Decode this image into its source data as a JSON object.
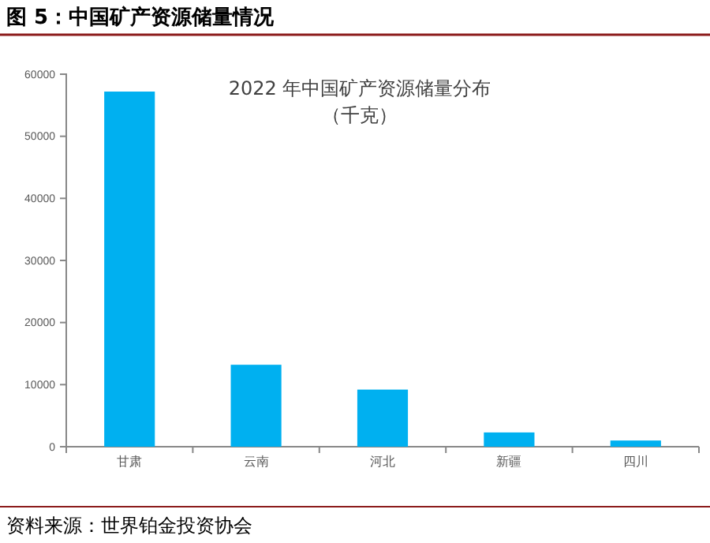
{
  "chart_data": {
    "type": "bar",
    "title": "图 5：中国矿产资源储量情况",
    "subtitle": "2022 年中国矿产资源储量分布（千克）",
    "categories": [
      "甘肃",
      "云南",
      "河北",
      "新疆",
      "四川"
    ],
    "values": [
      57200,
      13200,
      9200,
      2300,
      1000
    ],
    "color": "#00b0f0",
    "ylim": [
      0,
      60000
    ],
    "yticks": [
      0,
      10000,
      20000,
      30000,
      40000,
      50000,
      60000
    ],
    "grid": false,
    "annotations": [
      "资料来源：世界铂金投资协会"
    ]
  }
}
